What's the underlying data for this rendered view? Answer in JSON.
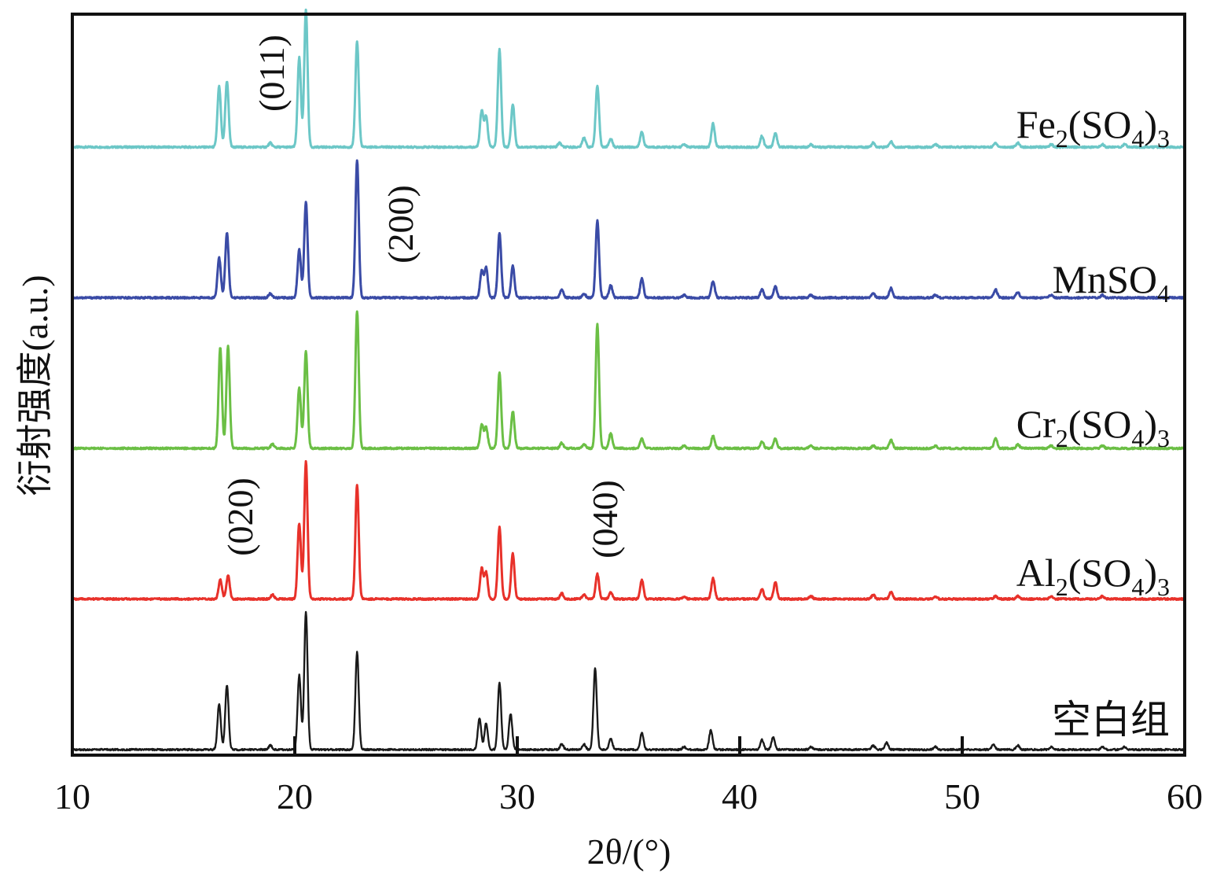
{
  "chart_data": {
    "type": "line",
    "xlabel": "2θ/(°)",
    "ylabel": "衍射强度(a.u.)",
    "xlim": [
      10,
      60
    ],
    "xticks": [
      10,
      20,
      30,
      40,
      50,
      60
    ],
    "xtick_labels": [
      "10",
      "20",
      "30",
      "40",
      "50",
      "60"
    ],
    "grid": false,
    "legend": "labels beside each curve, right side",
    "peak_annotations": [
      {
        "label": "(011)",
        "x": 19.5,
        "series": "Fe2(SO4)3"
      },
      {
        "label": "(200)",
        "x": 24.9,
        "series": "MnSO4"
      },
      {
        "label": "(020)",
        "x": 18.0,
        "series": "Al2(SO4)3"
      },
      {
        "label": "(040)",
        "x": 34.2,
        "series": "Al2(SO4)3"
      }
    ],
    "series": [
      {
        "name": "Fe2(SO4)3",
        "label": {
          "base": "Fe",
          "sub1": "2",
          "mid": "(SO",
          "sub2": "4",
          "end": ")",
          "sub3": "3"
        },
        "color": "#6cc7c7",
        "offset": 4,
        "x": [
          16.6,
          16.95,
          18.9,
          20.2,
          20.5,
          22.8,
          28.4,
          28.6,
          29.2,
          29.8,
          31.9,
          33.0,
          33.6,
          34.2,
          35.6,
          37.5,
          38.8,
          41.0,
          41.6,
          43.2,
          46.0,
          46.8,
          48.8,
          51.5,
          52.5,
          54.0,
          56.3,
          57.3
        ],
        "y": [
          0.44,
          0.48,
          0.03,
          0.65,
          1.0,
          0.77,
          0.26,
          0.22,
          0.71,
          0.31,
          0.03,
          0.07,
          0.45,
          0.06,
          0.11,
          0.02,
          0.17,
          0.08,
          0.1,
          0.02,
          0.03,
          0.04,
          0.02,
          0.03,
          0.03,
          0.02,
          0.02,
          0.02
        ]
      },
      {
        "name": "MnSO4",
        "label": {
          "base": "MnSO",
          "sub1": "4",
          "mid": "",
          "sub2": "",
          "end": "",
          "sub3": ""
        },
        "color": "#3a4ba6",
        "offset": 3,
        "x": [
          16.6,
          16.95,
          18.9,
          20.2,
          20.5,
          22.8,
          28.4,
          28.6,
          29.2,
          29.8,
          32.0,
          33.0,
          33.6,
          34.2,
          35.6,
          37.5,
          38.8,
          41.0,
          41.6,
          43.2,
          46.0,
          46.8,
          48.8,
          51.5,
          52.5,
          54.0,
          56.3
        ],
        "y": [
          0.29,
          0.47,
          0.03,
          0.35,
          0.7,
          1.0,
          0.19,
          0.22,
          0.47,
          0.23,
          0.06,
          0.03,
          0.56,
          0.09,
          0.14,
          0.02,
          0.12,
          0.06,
          0.08,
          0.02,
          0.03,
          0.07,
          0.02,
          0.06,
          0.04,
          0.02,
          0.02
        ]
      },
      {
        "name": "Cr2(SO4)3",
        "label": {
          "base": "Cr",
          "sub1": "2",
          "mid": "(SO",
          "sub2": "4",
          "end": ")",
          "sub3": "3"
        },
        "color": "#6bbf45",
        "offset": 2,
        "x": [
          16.65,
          17.0,
          19.0,
          20.2,
          20.5,
          22.8,
          28.4,
          28.6,
          29.2,
          29.8,
          32.0,
          33.0,
          33.6,
          34.2,
          35.6,
          37.5,
          38.8,
          41.0,
          41.6,
          43.2,
          46.0,
          46.8,
          48.8,
          51.5,
          52.5,
          54.0,
          56.3
        ],
        "y": [
          0.73,
          0.74,
          0.03,
          0.44,
          0.71,
          1.0,
          0.17,
          0.15,
          0.55,
          0.27,
          0.04,
          0.03,
          0.9,
          0.11,
          0.07,
          0.02,
          0.09,
          0.05,
          0.07,
          0.02,
          0.02,
          0.06,
          0.02,
          0.07,
          0.03,
          0.02,
          0.02
        ]
      },
      {
        "name": "Al2(SO4)3",
        "label": {
          "base": "Al",
          "sub1": "2",
          "mid": "(SO",
          "sub2": "4",
          "end": ")",
          "sub3": "3"
        },
        "color": "#e8312a",
        "offset": 1,
        "x": [
          16.65,
          17.0,
          19.0,
          20.2,
          20.5,
          22.8,
          28.4,
          28.6,
          29.2,
          29.8,
          32.0,
          33.0,
          33.6,
          34.2,
          35.6,
          37.5,
          38.8,
          41.0,
          41.6,
          43.2,
          46.0,
          46.8,
          48.8,
          51.5,
          52.5,
          54.0,
          56.3
        ],
        "y": [
          0.14,
          0.17,
          0.03,
          0.55,
          1.0,
          0.83,
          0.22,
          0.19,
          0.52,
          0.33,
          0.04,
          0.03,
          0.18,
          0.05,
          0.14,
          0.02,
          0.15,
          0.07,
          0.12,
          0.02,
          0.03,
          0.05,
          0.02,
          0.02,
          0.02,
          0.02,
          0.02
        ]
      },
      {
        "name": "空白组",
        "label": {
          "base": "空白组",
          "sub1": "",
          "mid": "",
          "sub2": "",
          "end": "",
          "sub3": ""
        },
        "color": "#1a1a1a",
        "offset": 0,
        "x": [
          16.6,
          16.95,
          18.9,
          20.2,
          20.5,
          22.8,
          28.3,
          28.6,
          29.2,
          29.7,
          32.0,
          33.0,
          33.5,
          34.2,
          35.6,
          37.5,
          38.7,
          41.0,
          41.5,
          43.2,
          46.0,
          46.6,
          48.8,
          51.4,
          52.5,
          54.0,
          56.3,
          57.3
        ],
        "y": [
          0.33,
          0.47,
          0.03,
          0.54,
          1.0,
          0.71,
          0.23,
          0.19,
          0.49,
          0.26,
          0.04,
          0.04,
          0.59,
          0.08,
          0.12,
          0.02,
          0.14,
          0.07,
          0.09,
          0.02,
          0.03,
          0.05,
          0.02,
          0.04,
          0.03,
          0.02,
          0.02,
          0.02
        ]
      }
    ]
  }
}
